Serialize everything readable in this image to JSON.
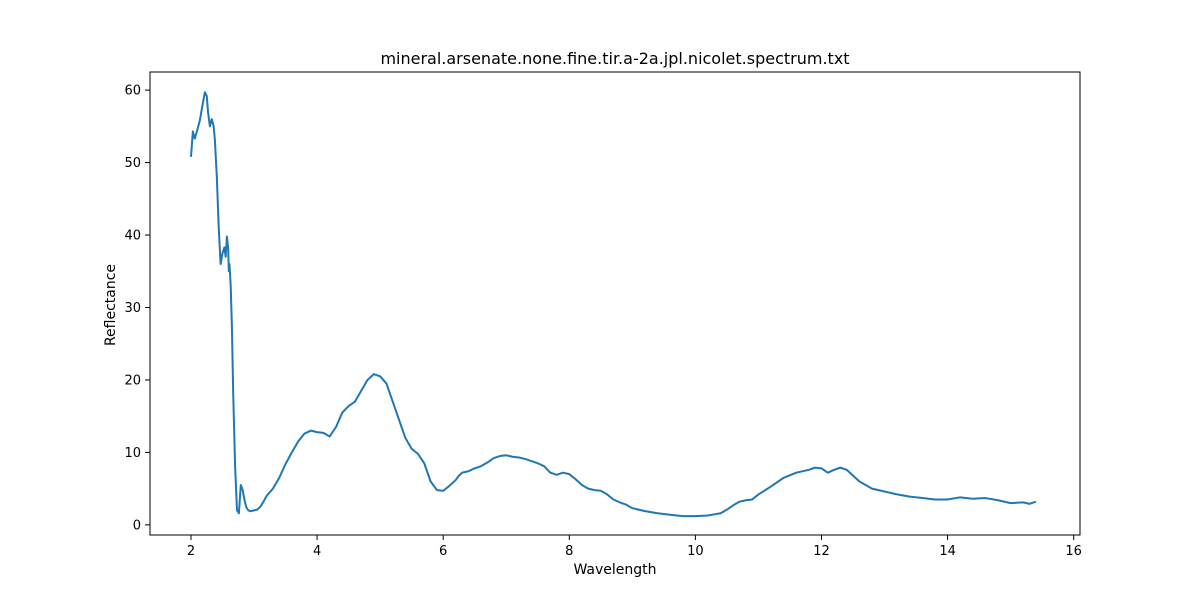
{
  "chart_data": {
    "type": "line",
    "title": "mineral.arsenate.none.fine.tir.a-2a.jpl.nicolet.spectrum.txt",
    "xlabel": "Wavelength",
    "ylabel": "Reflectance",
    "xlim": [
      1.35,
      16.1
    ],
    "ylim": [
      -1.4,
      62.5
    ],
    "xticks": [
      2,
      4,
      6,
      8,
      10,
      12,
      14,
      16
    ],
    "yticks": [
      0,
      10,
      20,
      30,
      40,
      50,
      60
    ],
    "grid": false,
    "series_color": "#1f77b4",
    "series": [
      {
        "x": [
          2.0,
          2.03,
          2.06,
          2.1,
          2.14,
          2.18,
          2.22,
          2.25,
          2.27,
          2.3,
          2.33,
          2.36,
          2.38,
          2.41,
          2.44,
          2.47,
          2.5,
          2.53,
          2.55,
          2.57,
          2.59,
          2.6,
          2.61,
          2.63,
          2.65,
          2.67,
          2.7,
          2.73,
          2.76,
          2.79,
          2.82,
          2.84,
          2.86,
          2.88,
          2.9,
          2.93,
          2.96,
          3.0,
          3.05,
          3.1,
          3.15,
          3.2,
          3.3,
          3.4,
          3.5,
          3.6,
          3.7,
          3.8,
          3.9,
          4.0,
          4.1,
          4.2,
          4.3,
          4.4,
          4.5,
          4.6,
          4.7,
          4.8,
          4.9,
          5.0,
          5.1,
          5.2,
          5.3,
          5.4,
          5.5,
          5.6,
          5.7,
          5.8,
          5.9,
          6.0,
          6.1,
          6.2,
          6.25,
          6.3,
          6.4,
          6.5,
          6.6,
          6.7,
          6.8,
          6.9,
          7.0,
          7.1,
          7.2,
          7.3,
          7.4,
          7.5,
          7.6,
          7.7,
          7.8,
          7.9,
          8.0,
          8.1,
          8.2,
          8.3,
          8.4,
          8.5,
          8.6,
          8.7,
          8.8,
          8.9,
          9.0,
          9.2,
          9.4,
          9.6,
          9.8,
          10.0,
          10.2,
          10.4,
          10.5,
          10.6,
          10.7,
          10.8,
          10.9,
          11.0,
          11.2,
          11.4,
          11.6,
          11.8,
          11.9,
          12.0,
          12.1,
          12.2,
          12.3,
          12.4,
          12.5,
          12.6,
          12.7,
          12.8,
          13.0,
          13.2,
          13.4,
          13.6,
          13.8,
          14.0,
          14.2,
          14.4,
          14.6,
          14.8,
          15.0,
          15.2,
          15.3,
          15.4
        ],
        "y": [
          50.8,
          54.3,
          53.3,
          54.5,
          55.8,
          57.8,
          59.7,
          59.2,
          57.0,
          55.0,
          56.0,
          55.0,
          53.0,
          48.0,
          41.0,
          36.0,
          37.5,
          38.3,
          37.0,
          39.8,
          38.2,
          35.0,
          36.0,
          33.0,
          27.0,
          18.0,
          8.0,
          2.0,
          1.6,
          5.5,
          4.8,
          3.8,
          3.0,
          2.4,
          2.1,
          1.9,
          1.9,
          2.0,
          2.1,
          2.5,
          3.2,
          4.0,
          5.0,
          6.5,
          8.4,
          10.0,
          11.5,
          12.6,
          13.0,
          12.8,
          12.7,
          12.2,
          13.5,
          15.5,
          16.4,
          17.0,
          18.5,
          20.0,
          20.8,
          20.5,
          19.5,
          17.0,
          14.5,
          12.0,
          10.5,
          9.8,
          8.5,
          6.0,
          4.8,
          4.7,
          5.4,
          6.2,
          6.8,
          7.2,
          7.4,
          7.8,
          8.1,
          8.6,
          9.2,
          9.5,
          9.6,
          9.4,
          9.3,
          9.1,
          8.8,
          8.5,
          8.1,
          7.2,
          6.9,
          7.2,
          7.0,
          6.3,
          5.5,
          5.0,
          4.8,
          4.7,
          4.2,
          3.5,
          3.1,
          2.8,
          2.3,
          1.9,
          1.6,
          1.4,
          1.2,
          1.2,
          1.3,
          1.6,
          2.1,
          2.7,
          3.2,
          3.4,
          3.5,
          4.2,
          5.3,
          6.5,
          7.2,
          7.6,
          7.9,
          7.8,
          7.2,
          7.6,
          7.9,
          7.6,
          6.8,
          6.0,
          5.5,
          5.0,
          4.6,
          4.2,
          3.9,
          3.7,
          3.5,
          3.5,
          3.8,
          3.6,
          3.7,
          3.4,
          3.0,
          3.1,
          2.9,
          3.2
        ]
      }
    ]
  }
}
